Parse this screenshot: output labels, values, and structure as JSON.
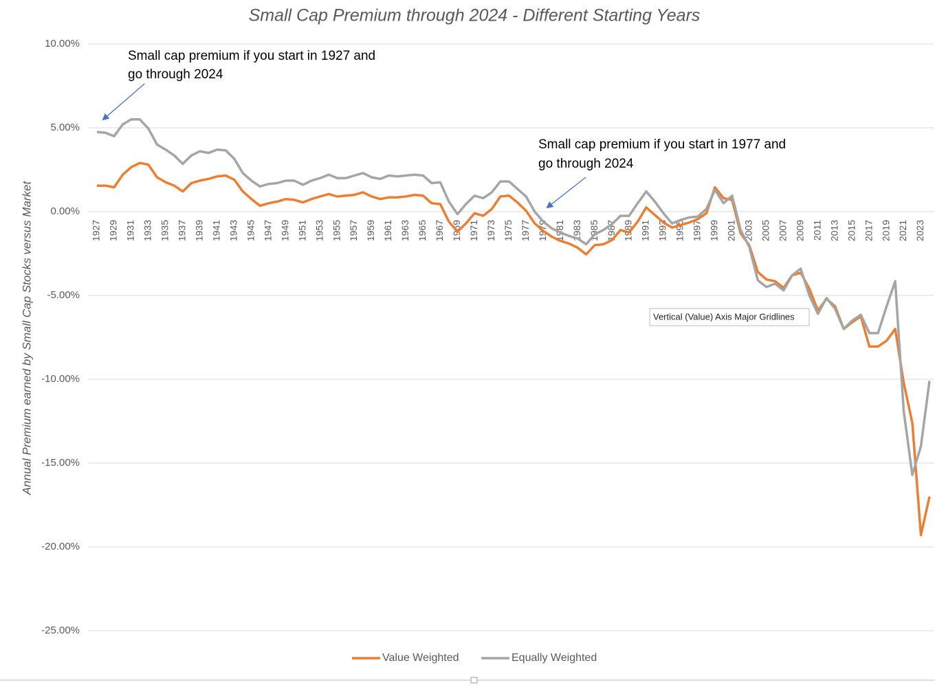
{
  "chart_data": {
    "type": "line",
    "title": "Small Cap Premium through 2024 - Different Starting Years",
    "y_label": "Annual Premium earned by Small Cap Stocks versus Market",
    "categories": [
      "1927",
      null,
      "1929",
      null,
      "1931",
      null,
      "1933",
      null,
      "1935",
      null,
      "1937",
      null,
      "1939",
      null,
      "1941",
      null,
      "1943",
      null,
      "1945",
      null,
      "1947",
      null,
      "1949",
      null,
      "1951",
      null,
      "1953",
      null,
      "1955",
      null,
      "1957",
      null,
      "1959",
      null,
      "1961",
      null,
      "1963",
      null,
      "1965",
      null,
      "1967",
      null,
      "1969",
      null,
      "1971",
      null,
      "1973",
      null,
      "1975",
      null,
      "1977",
      null,
      "1979",
      null,
      "1981",
      null,
      "1983",
      null,
      "1985",
      null,
      "1987",
      null,
      "1989",
      null,
      "1991",
      null,
      "1993",
      null,
      "1995",
      null,
      "1997",
      null,
      "1999",
      null,
      "2001",
      null,
      "2003",
      null,
      "2005",
      null,
      "2007",
      null,
      "2009",
      null,
      "2011",
      null,
      "2013",
      null,
      "2015",
      null,
      "2017",
      null,
      "2019",
      null,
      "2021",
      null,
      "2023",
      null
    ],
    "series": [
      {
        "name": "Value Weighted",
        "color": "#ed7d31",
        "values": [
          1.55,
          1.55,
          1.45,
          2.2,
          2.65,
          2.9,
          2.8,
          2.05,
          1.75,
          1.55,
          1.2,
          1.7,
          1.85,
          1.95,
          2.1,
          2.15,
          1.9,
          1.2,
          0.75,
          0.35,
          0.5,
          0.6,
          0.75,
          0.7,
          0.55,
          0.75,
          0.9,
          1.05,
          0.9,
          0.95,
          1.0,
          1.15,
          0.9,
          0.75,
          0.85,
          0.85,
          0.9,
          1.0,
          0.95,
          0.5,
          0.45,
          -0.6,
          -1.2,
          -0.7,
          -0.1,
          -0.25,
          0.15,
          0.9,
          0.95,
          0.55,
          0.05,
          -0.7,
          -1.15,
          -1.5,
          -1.75,
          -1.9,
          -2.15,
          -2.55,
          -2.0,
          -1.95,
          -1.7,
          -1.1,
          -1.25,
          -0.6,
          0.25,
          -0.2,
          -0.65,
          -0.95,
          -0.8,
          -0.65,
          -0.45,
          -0.1,
          1.45,
          0.8,
          0.7,
          -1.3,
          -2.0,
          -3.6,
          -4.05,
          -4.15,
          -4.55,
          -3.8,
          -3.65,
          -4.6,
          -5.9,
          -5.2,
          -5.65,
          -7.0,
          -6.6,
          -6.25,
          -8.05,
          -8.05,
          -7.7,
          -7.0,
          -10.2,
          -12.6,
          -19.3,
          -17.0
        ]
      },
      {
        "name": "Equally Weighted",
        "color": "#a5a5a5",
        "values": [
          4.75,
          4.7,
          4.5,
          5.2,
          5.5,
          5.5,
          4.95,
          4.0,
          3.7,
          3.35,
          2.85,
          3.35,
          3.6,
          3.5,
          3.7,
          3.65,
          3.15,
          2.3,
          1.85,
          1.5,
          1.65,
          1.7,
          1.85,
          1.85,
          1.6,
          1.85,
          2.0,
          2.2,
          2.0,
          2.0,
          2.15,
          2.3,
          2.05,
          1.95,
          2.15,
          2.1,
          2.15,
          2.2,
          2.15,
          1.7,
          1.75,
          0.6,
          -0.15,
          0.45,
          0.95,
          0.8,
          1.15,
          1.8,
          1.8,
          1.35,
          0.9,
          0.0,
          -0.6,
          -1.0,
          -1.25,
          -1.45,
          -1.6,
          -1.95,
          -1.35,
          -1.1,
          -0.75,
          -0.25,
          -0.25,
          0.5,
          1.2,
          0.6,
          -0.1,
          -0.7,
          -0.5,
          -0.35,
          -0.3,
          0.15,
          1.3,
          0.5,
          0.95,
          -1.1,
          -2.1,
          -4.1,
          -4.5,
          -4.3,
          -4.7,
          -3.8,
          -3.4,
          -5.0,
          -6.1,
          -5.15,
          -5.8,
          -7.0,
          -6.5,
          -6.15,
          -7.25,
          -7.25,
          -5.65,
          -4.15,
          -11.9,
          -15.7,
          -14.0,
          -10.1
        ]
      }
    ],
    "ylim": [
      -25,
      10
    ],
    "yticks": [
      {
        "value": -25,
        "label": "-25.00%"
      },
      {
        "value": -20,
        "label": "-20.00%"
      },
      {
        "value": -15,
        "label": "-15.00%"
      },
      {
        "value": -10,
        "label": "-10.00%"
      },
      {
        "value": -5,
        "label": "-5.00%"
      },
      {
        "value": 0,
        "label": "0.00%"
      },
      {
        "value": 5,
        "label": "5.00%"
      },
      {
        "value": 10,
        "label": "10.00%"
      }
    ],
    "grid": true,
    "legend": "bottom",
    "annotations": [
      {
        "lines": [
          "Small cap premium if you start in 1927 and",
          "go through 2024"
        ]
      },
      {
        "lines": [
          "Small cap premium if you start in 1977 and",
          "go through 2024"
        ]
      }
    ],
    "tooltip": "Vertical (Value) Axis Major Gridlines"
  }
}
